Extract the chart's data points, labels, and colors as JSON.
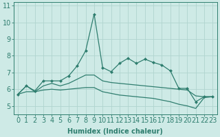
{
  "xlabel": "Humidex (Indice chaleur)",
  "background_color": "#ceeae6",
  "grid_color": "#b0d4cf",
  "line_color": "#2e7d6e",
  "x_values": [
    0,
    1,
    2,
    3,
    4,
    5,
    6,
    7,
    8,
    9,
    10,
    11,
    12,
    13,
    14,
    15,
    16,
    17,
    18,
    19,
    20,
    21,
    22,
    23
  ],
  "line1": [
    5.7,
    6.2,
    5.9,
    6.5,
    6.5,
    6.5,
    6.8,
    7.4,
    8.3,
    10.5,
    7.3,
    7.05,
    7.55,
    7.85,
    7.55,
    7.8,
    7.6,
    7.45,
    7.1,
    6.05,
    6.05,
    5.25,
    5.55,
    5.55
  ],
  "line2": [
    5.7,
    6.2,
    5.85,
    6.2,
    6.35,
    6.2,
    6.35,
    6.6,
    6.85,
    6.85,
    6.5,
    6.4,
    6.35,
    6.3,
    6.25,
    6.2,
    6.15,
    6.1,
    6.05,
    6.0,
    5.95,
    5.6,
    5.55,
    5.55
  ],
  "line3": [
    5.7,
    5.85,
    5.85,
    5.95,
    6.0,
    5.95,
    6.0,
    6.05,
    6.1,
    6.1,
    5.85,
    5.75,
    5.65,
    5.6,
    5.55,
    5.5,
    5.45,
    5.35,
    5.25,
    5.1,
    5.0,
    4.85,
    5.5,
    5.55
  ],
  "ylim": [
    4.5,
    11.2
  ],
  "xlim": [
    -0.5,
    23.5
  ],
  "yticks": [
    5,
    6,
    7,
    8,
    9,
    10,
    11
  ],
  "xticks": [
    0,
    1,
    2,
    3,
    4,
    5,
    6,
    7,
    8,
    9,
    10,
    11,
    12,
    13,
    14,
    15,
    16,
    17,
    18,
    19,
    20,
    21,
    22,
    23
  ],
  "font_size": 7.0,
  "marker": "D",
  "marker_size": 2.0,
  "line_width": 0.9
}
